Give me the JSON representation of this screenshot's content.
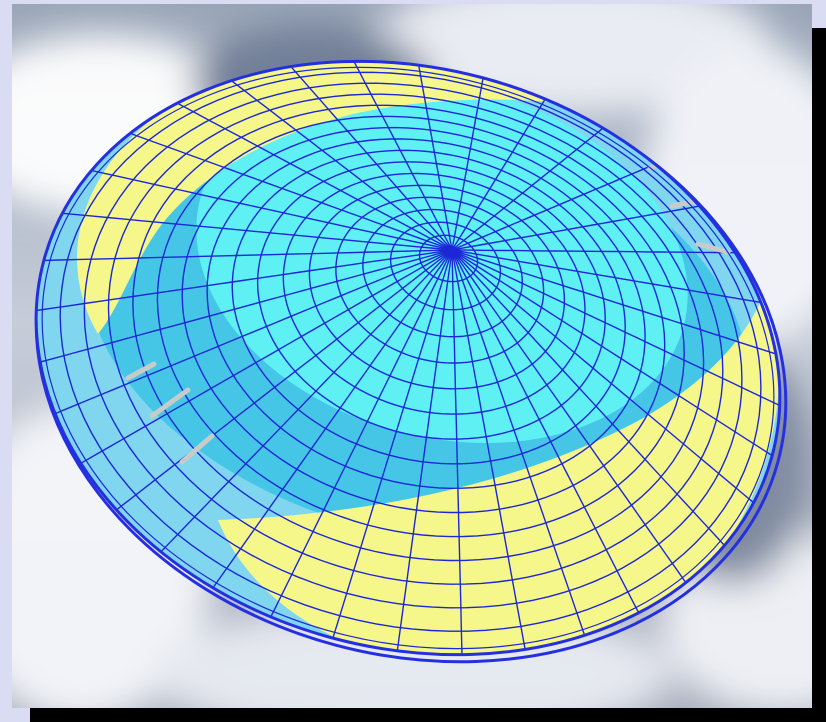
{
  "figure": {
    "colors": {
      "page_background": "#d9dcf2",
      "shadow": "#000000",
      "grid_line": "#1c27d6",
      "outer_rim": "#2430e0",
      "inner_sky": "#5ff0f4",
      "mid_band": "#45c6e6",
      "outer_band": "#7fd6ee",
      "crescent": "#f6f78a",
      "tick_marks": "#c8ccc8"
    },
    "icons": [
      "cloud-sky-background",
      "dome-grid",
      "zenith-point"
    ]
  }
}
